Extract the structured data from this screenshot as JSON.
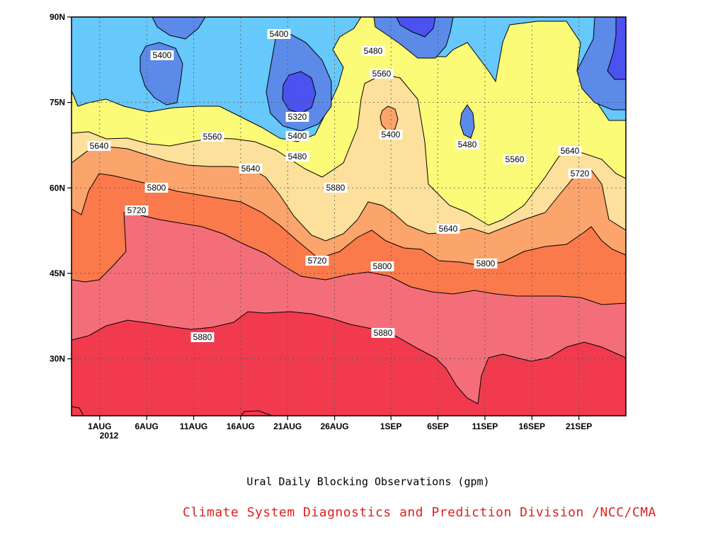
{
  "chart_data": {
    "type": "heatmap",
    "variant": "filled-contour",
    "title": "",
    "xlabel": "Ural Daily Blocking Observations (gpm)",
    "ylabel": "",
    "x_ticks": [
      "1AUG",
      "6AUG",
      "11AUG",
      "16AUG",
      "21AUG",
      "26AUG",
      "1SEP",
      "6SEP",
      "11SEP",
      "16SEP",
      "21SEP"
    ],
    "x_year_label": "2012",
    "y_ticks": [
      "30N",
      "45N",
      "60N",
      "75N",
      "90N"
    ],
    "xlim": [
      "2012-07-29",
      "2012-09-26"
    ],
    "ylim": [
      20,
      90
    ],
    "contour_levels": [
      5320,
      5400,
      5480,
      5560,
      5640,
      5720,
      5800,
      5880
    ],
    "contour_labels": [
      "5400",
      "5400",
      "5480",
      "5560",
      "5640",
      "5320",
      "5400",
      "5480",
      "5560",
      "5640",
      "5400",
      "5480",
      "5560",
      "5640",
      "5720",
      "5800",
      "5720",
      "5880",
      "5640",
      "5800",
      "5720",
      "5880",
      "5800",
      "5880"
    ],
    "fill_colors": [
      "#4b52f0",
      "#5b8ae8",
      "#66c8fb",
      "#fbfb78",
      "#fce09c",
      "#fba46b",
      "#fb7a4b",
      "#f46e7a",
      "#f23a4f"
    ],
    "grid": true
  },
  "credit": "Climate System Diagnostics and Prediction Division /NCC/CMA",
  "colors": {
    "credit": "#e02020"
  }
}
